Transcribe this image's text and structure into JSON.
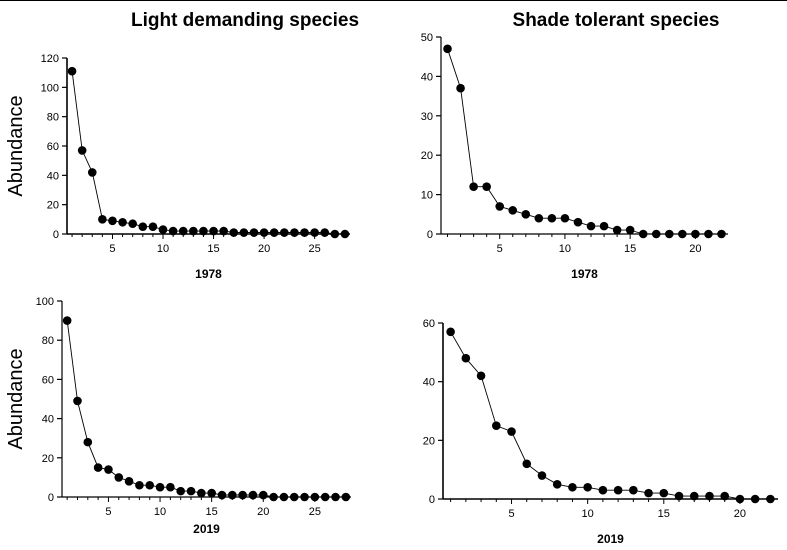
{
  "figure": {
    "column_titles": [
      "Light demanding species",
      "Shade tolerant species"
    ],
    "row_ylabels": [
      "Abundance",
      "Abundance"
    ]
  },
  "chart_data": [
    {
      "type": "line",
      "panel": "top-left",
      "xlabel": "1978",
      "ylabel": "Abundance",
      "xlim": [
        0.5,
        28.5
      ],
      "ylim": [
        0,
        120
      ],
      "xticks": [
        5,
        10,
        15,
        20,
        25
      ],
      "yticks": [
        0,
        20,
        40,
        60,
        80,
        100,
        120
      ],
      "x": [
        1,
        2,
        3,
        4,
        5,
        6,
        7,
        8,
        9,
        10,
        11,
        12,
        13,
        14,
        15,
        16,
        17,
        18,
        19,
        20,
        21,
        22,
        23,
        24,
        25,
        26,
        27,
        28
      ],
      "values": [
        111,
        57,
        42,
        10,
        9,
        8,
        7,
        5,
        5,
        3,
        2,
        2,
        2,
        2,
        2,
        2,
        1,
        1,
        1,
        1,
        1,
        1,
        1,
        1,
        1,
        1,
        0,
        0
      ],
      "grid": false
    },
    {
      "type": "line",
      "panel": "top-right",
      "xlabel": "1978",
      "ylabel": "",
      "xlim": [
        0.5,
        22.5
      ],
      "ylim": [
        0,
        50
      ],
      "xticks": [
        5,
        10,
        15,
        20
      ],
      "yticks": [
        0,
        10,
        20,
        30,
        40,
        50
      ],
      "x": [
        1,
        2,
        3,
        4,
        5,
        6,
        7,
        8,
        9,
        10,
        11,
        12,
        13,
        14,
        15,
        16,
        17,
        18,
        19,
        20,
        21,
        22
      ],
      "values": [
        47,
        37,
        12,
        12,
        7,
        6,
        5,
        4,
        4,
        4,
        3,
        2,
        2,
        1,
        1,
        0,
        0,
        0,
        0,
        0,
        0,
        0
      ],
      "grid": false
    },
    {
      "type": "line",
      "panel": "bottom-left",
      "xlabel": "2019",
      "ylabel": "Abundance",
      "xlim": [
        0.5,
        28.5
      ],
      "ylim": [
        0,
        100
      ],
      "xticks": [
        5,
        10,
        15,
        20,
        25
      ],
      "yticks": [
        0,
        20,
        40,
        60,
        80,
        100
      ],
      "x": [
        1,
        2,
        3,
        4,
        5,
        6,
        7,
        8,
        9,
        10,
        11,
        12,
        13,
        14,
        15,
        16,
        17,
        18,
        19,
        20,
        21,
        22,
        23,
        24,
        25,
        26,
        27,
        28
      ],
      "values": [
        90,
        49,
        28,
        15,
        14,
        10,
        8,
        6,
        6,
        5,
        5,
        3,
        3,
        2,
        2,
        1,
        1,
        1,
        1,
        1,
        0,
        0,
        0,
        0,
        0,
        0,
        0,
        0
      ],
      "grid": false
    },
    {
      "type": "line",
      "panel": "bottom-right",
      "xlabel": "2019",
      "ylabel": "",
      "xlim": [
        0.5,
        22.5
      ],
      "ylim": [
        0,
        60
      ],
      "xticks": [
        5,
        10,
        15,
        20
      ],
      "yticks": [
        0,
        20,
        40,
        60
      ],
      "x": [
        1,
        2,
        3,
        4,
        5,
        6,
        7,
        8,
        9,
        10,
        11,
        12,
        13,
        14,
        15,
        16,
        17,
        18,
        19,
        20,
        21,
        22
      ],
      "values": [
        57,
        48,
        42,
        25,
        23,
        12,
        8,
        5,
        4,
        4,
        3,
        3,
        3,
        2,
        2,
        1,
        1,
        1,
        1,
        0,
        0,
        0
      ],
      "grid": false
    }
  ]
}
